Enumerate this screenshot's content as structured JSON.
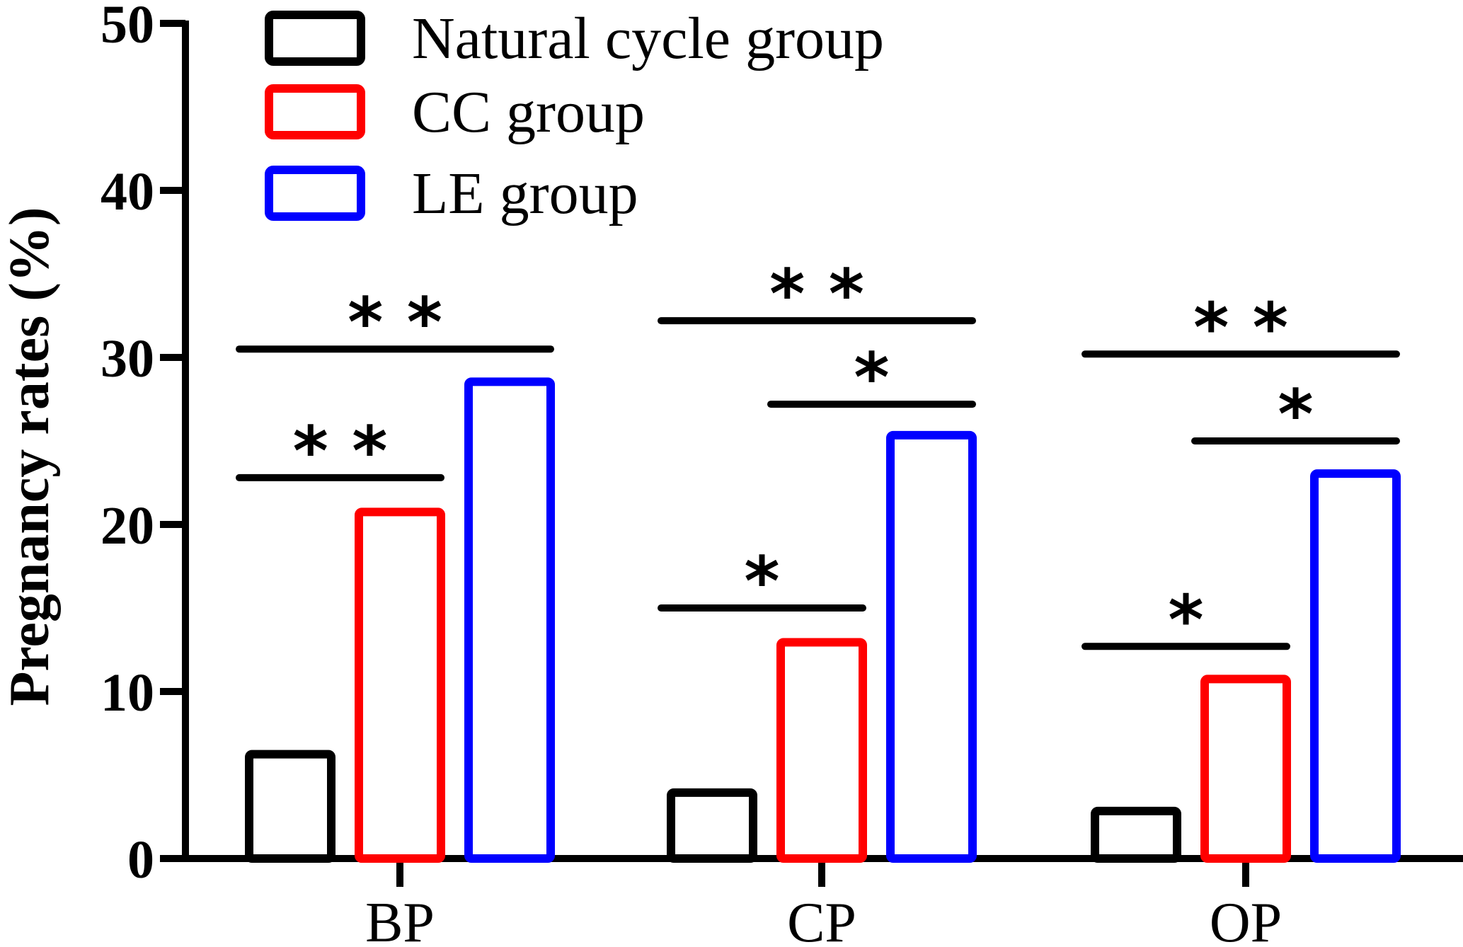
{
  "chart_data": {
    "type": "bar",
    "title": "",
    "xlabel": "",
    "ylabel": "Pregnancy rates (%)",
    "ylim": [
      0,
      50
    ],
    "yticks": [
      "0",
      "10",
      "20",
      "30",
      "40",
      "50"
    ],
    "categories": [
      "BP",
      "CP",
      "OP"
    ],
    "series": [
      {
        "name": "Natural cycle group",
        "color": "#000000",
        "values": [
          6.5,
          4.2,
          3.1
        ]
      },
      {
        "name": "CC group",
        "color": "#ff0000",
        "values": [
          21.0,
          13.2,
          11.0
        ]
      },
      {
        "name": "LE group",
        "color": "#0000ff",
        "values": [
          28.8,
          25.6,
          23.3
        ]
      }
    ],
    "legend_position": "top-left",
    "significance": [
      {
        "category": "BP",
        "from_series": 0,
        "to_series": 2,
        "y": 30.5,
        "label": "* *"
      },
      {
        "category": "BP",
        "from_series": 0,
        "to_series": 1,
        "y": 22.8,
        "label": "* *"
      },
      {
        "category": "CP",
        "from_series": 0,
        "to_series": 2,
        "y": 32.2,
        "label": "* *"
      },
      {
        "category": "CP",
        "from_series": 1,
        "to_series": 2,
        "y": 27.2,
        "label": "*"
      },
      {
        "category": "CP",
        "from_series": 0,
        "to_series": 1,
        "y": 15.0,
        "label": "*"
      },
      {
        "category": "OP",
        "from_series": 0,
        "to_series": 2,
        "y": 30.2,
        "label": "* *"
      },
      {
        "category": "OP",
        "from_series": 1,
        "to_series": 2,
        "y": 25.0,
        "label": "*"
      },
      {
        "category": "OP",
        "from_series": 0,
        "to_series": 1,
        "y": 12.7,
        "label": "*"
      }
    ]
  }
}
